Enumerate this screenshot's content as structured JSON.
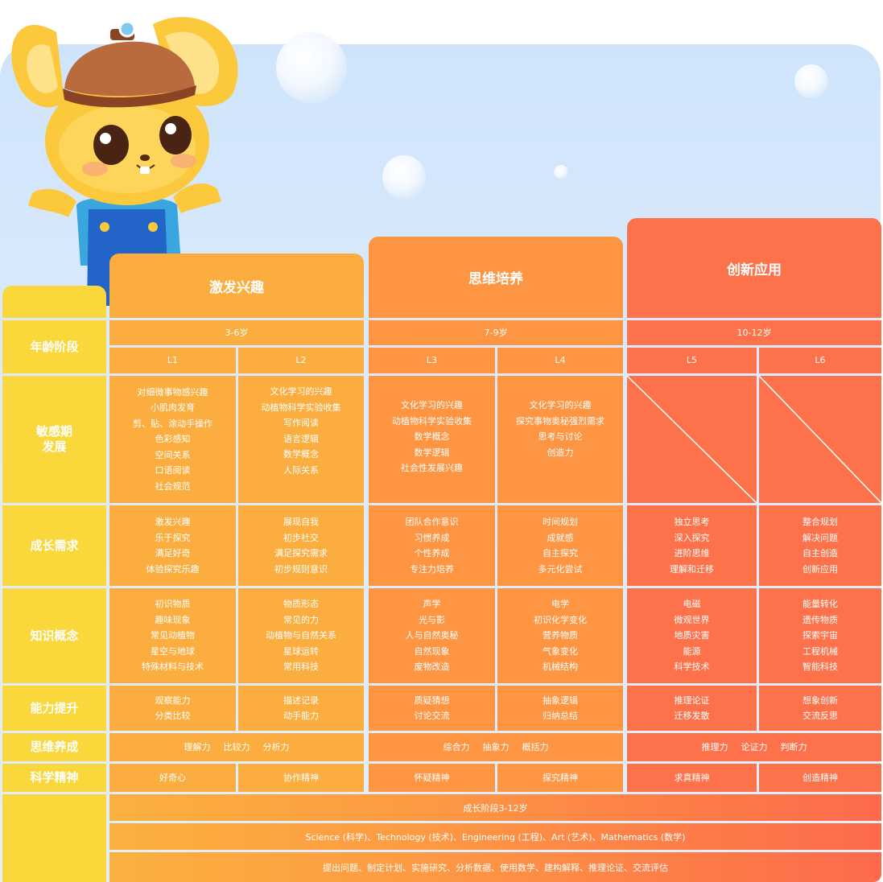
{
  "colors": {
    "stage1": "#fbae3f",
    "stage2": "#fd9543",
    "stage3": "#fd724a",
    "label_col": "#fad73a",
    "sky": "#d6e8fb"
  },
  "mascot": {
    "icon": "rabbit-mascot-icon"
  },
  "stages": [
    {
      "title": "激发兴趣",
      "age": "3-6岁",
      "levels": [
        "L1",
        "L2"
      ]
    },
    {
      "title": "思维培养",
      "age": "7-9岁",
      "levels": [
        "L3",
        "L4"
      ]
    },
    {
      "title": "创新应用",
      "age": "10-12岁",
      "levels": [
        "L5",
        "L6"
      ]
    }
  ],
  "row_labels": {
    "age": "年龄阶段",
    "sensitive": [
      "敏感期",
      "发展"
    ],
    "growth": "成长需求",
    "knowledge": "知识概念",
    "ability": "能力提升",
    "thinking": "思维养成",
    "spirit": "科学精神"
  },
  "sensitive": [
    [
      "对细微事物感兴趣",
      "小肌肉发育",
      "剪、贴、涂动手操作",
      "色彩感知",
      "空间关系",
      "口语阅读",
      "社会规范"
    ],
    [
      "文化学习的兴趣",
      "动植物科学实验收集",
      "写作阅读",
      "语言逻辑",
      "数学概念",
      "人际关系"
    ],
    [
      "文化学习的兴趣",
      "动植物科学实验收集",
      "数学概念",
      "数学逻辑",
      "社会性发展兴趣"
    ],
    [
      "文化学习的兴趣",
      "探究事物奥秘强烈需求",
      "思考与讨论",
      "创造力"
    ]
  ],
  "growth": [
    [
      "激发兴趣",
      "乐于探究",
      "满足好奇",
      "体验探究乐趣"
    ],
    [
      "展现自我",
      "初步社交",
      "满足探究需求",
      "初步规则意识"
    ],
    [
      "团队合作意识",
      "习惯养成",
      "个性养成",
      "专注力培养"
    ],
    [
      "时间规划",
      "成就感",
      "自主探究",
      "多元化尝试"
    ],
    [
      "独立思考",
      "深入探究",
      "进阶思维",
      "理解和迁移"
    ],
    [
      "整合规划",
      "解决问题",
      "自主创造",
      "创新应用"
    ]
  ],
  "knowledge": [
    [
      "初识物质",
      "趣味现象",
      "常见动植物",
      "星空与地球",
      "特殊材料与技术"
    ],
    [
      "物质形态",
      "常见的力",
      "动植物与自然关系",
      "星球运转",
      "常用科技"
    ],
    [
      "声学",
      "光与影",
      "人与自然奥秘",
      "自然现象",
      "废物改造"
    ],
    [
      "电学",
      "初识化学变化",
      "营养物质",
      "气象变化",
      "机械结构"
    ],
    [
      "电磁",
      "微观世界",
      "地质灾害",
      "能源",
      "科学技术"
    ],
    [
      "能量转化",
      "遗传物质",
      "探索宇宙",
      "工程机械",
      "智能科技"
    ]
  ],
  "ability": [
    [
      "观察能力",
      "分类比较"
    ],
    [
      "描述记录",
      "动手能力"
    ],
    [
      "质疑猜想",
      "讨论交流"
    ],
    [
      "抽象逻辑",
      "归纳总结"
    ],
    [
      "推理论证",
      "迁移发散"
    ],
    [
      "想象创新",
      "交流反思"
    ]
  ],
  "thinking": [
    [
      "理解力",
      "比较力",
      "分析力"
    ],
    [
      "综合力",
      "抽象力",
      "概括力"
    ],
    [
      "推理力",
      "论证力",
      "判断力"
    ]
  ],
  "spirit": [
    "好奇心",
    "协作精神",
    "怀疑精神",
    "探究精神",
    "求真精神",
    "创造精神"
  ],
  "bottom": [
    "成长阶段3-12岁",
    "Science (科学)、Technology (技术)、Engineering (工程)、Art (艺术)、Mathematics (数学)",
    "提出问题、制定计划、实施研究、分析数据、使用数学、建构解释、推理论证、交流评估"
  ]
}
